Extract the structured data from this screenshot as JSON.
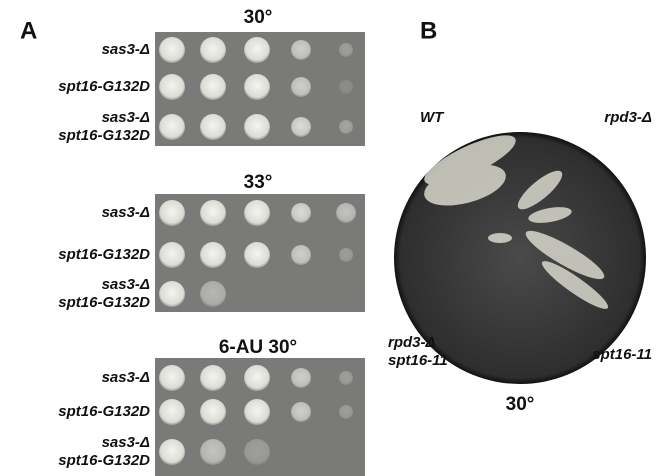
{
  "panel_a": {
    "label": "A",
    "plates": [
      {
        "title": "30°",
        "rows": [
          [
            "sas3-Δ"
          ],
          [
            "spt16-G132D"
          ],
          [
            "sas3-Δ",
            "spt16-G132D"
          ]
        ]
      },
      {
        "title": "33°",
        "rows": [
          [
            "sas3-Δ"
          ],
          [
            "spt16-G132D"
          ],
          [
            "sas3-Δ",
            "spt16-G132D"
          ]
        ]
      },
      {
        "title": "6-AU 30°",
        "rows": [
          [
            "sas3-Δ"
          ],
          [
            "spt16-G132D"
          ],
          [
            "sas3-Δ",
            "spt16-G132D"
          ]
        ]
      }
    ]
  },
  "panel_b": {
    "label": "B",
    "strains": [
      [
        "WT"
      ],
      [
        "rpd3-Δ"
      ],
      [
        "rpd3-Δ",
        "spt16-11"
      ],
      [
        "spt16-11"
      ]
    ],
    "temperature": "30°"
  }
}
